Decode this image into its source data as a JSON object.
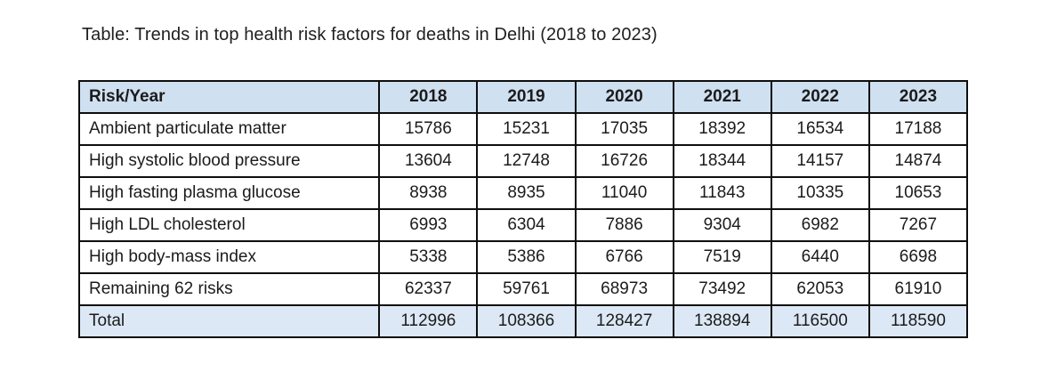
{
  "title": "Table: Trends in top health risk factors for deaths in Delhi (2018 to 2023)",
  "table": {
    "columns": [
      "Risk/Year",
      "2018",
      "2019",
      "2020",
      "2021",
      "2022",
      "2023"
    ],
    "rows": [
      {
        "label": "Ambient particulate matter",
        "values": [
          "15786",
          "15231",
          "17035",
          "18392",
          "16534",
          "17188"
        ]
      },
      {
        "label": "High systolic blood pressure",
        "values": [
          "13604",
          "12748",
          "16726",
          "18344",
          "14157",
          "14874"
        ]
      },
      {
        "label": "High fasting plasma glucose",
        "values": [
          "8938",
          "8935",
          "11040",
          "11843",
          "10335",
          "10653"
        ]
      },
      {
        "label": "High LDL cholesterol",
        "values": [
          "6993",
          "6304",
          "7886",
          "9304",
          "6982",
          "7267"
        ]
      },
      {
        "label": "High body-mass index",
        "values": [
          "5338",
          "5386",
          "6766",
          "7519",
          "6440",
          "6698"
        ]
      },
      {
        "label": "Remaining 62 risks",
        "values": [
          "62337",
          "59761",
          "68973",
          "73492",
          "62053",
          "61910"
        ]
      }
    ],
    "total_row": {
      "label": "Total",
      "values": [
        "112996",
        "108366",
        "128427",
        "138894",
        "116500",
        "118590"
      ]
    }
  },
  "colors": {
    "header_bg": "#cfe0f1",
    "total_bg": "#dce8f5",
    "border": "#0e0e0e",
    "text": "#1b1b1b"
  },
  "chart_data": {
    "type": "table",
    "title": "Table: Trends in top health risk factors for deaths in Delhi (2018 to 2023)",
    "categories": [
      "2018",
      "2019",
      "2020",
      "2021",
      "2022",
      "2023"
    ],
    "series": [
      {
        "name": "Ambient particulate matter",
        "values": [
          15786,
          15231,
          17035,
          18392,
          16534,
          17188
        ]
      },
      {
        "name": "High systolic blood pressure",
        "values": [
          13604,
          12748,
          16726,
          18344,
          14157,
          14874
        ]
      },
      {
        "name": "High fasting plasma glucose",
        "values": [
          8938,
          8935,
          11040,
          11843,
          10335,
          10653
        ]
      },
      {
        "name": "High LDL cholesterol",
        "values": [
          6993,
          6304,
          7886,
          9304,
          6982,
          7267
        ]
      },
      {
        "name": "High body-mass index",
        "values": [
          5338,
          5386,
          6766,
          7519,
          6440,
          6698
        ]
      },
      {
        "name": "Remaining 62 risks",
        "values": [
          62337,
          59761,
          68973,
          73492,
          62053,
          61910
        ]
      },
      {
        "name": "Total",
        "values": [
          112996,
          108366,
          128427,
          138894,
          116500,
          118590
        ]
      }
    ]
  }
}
